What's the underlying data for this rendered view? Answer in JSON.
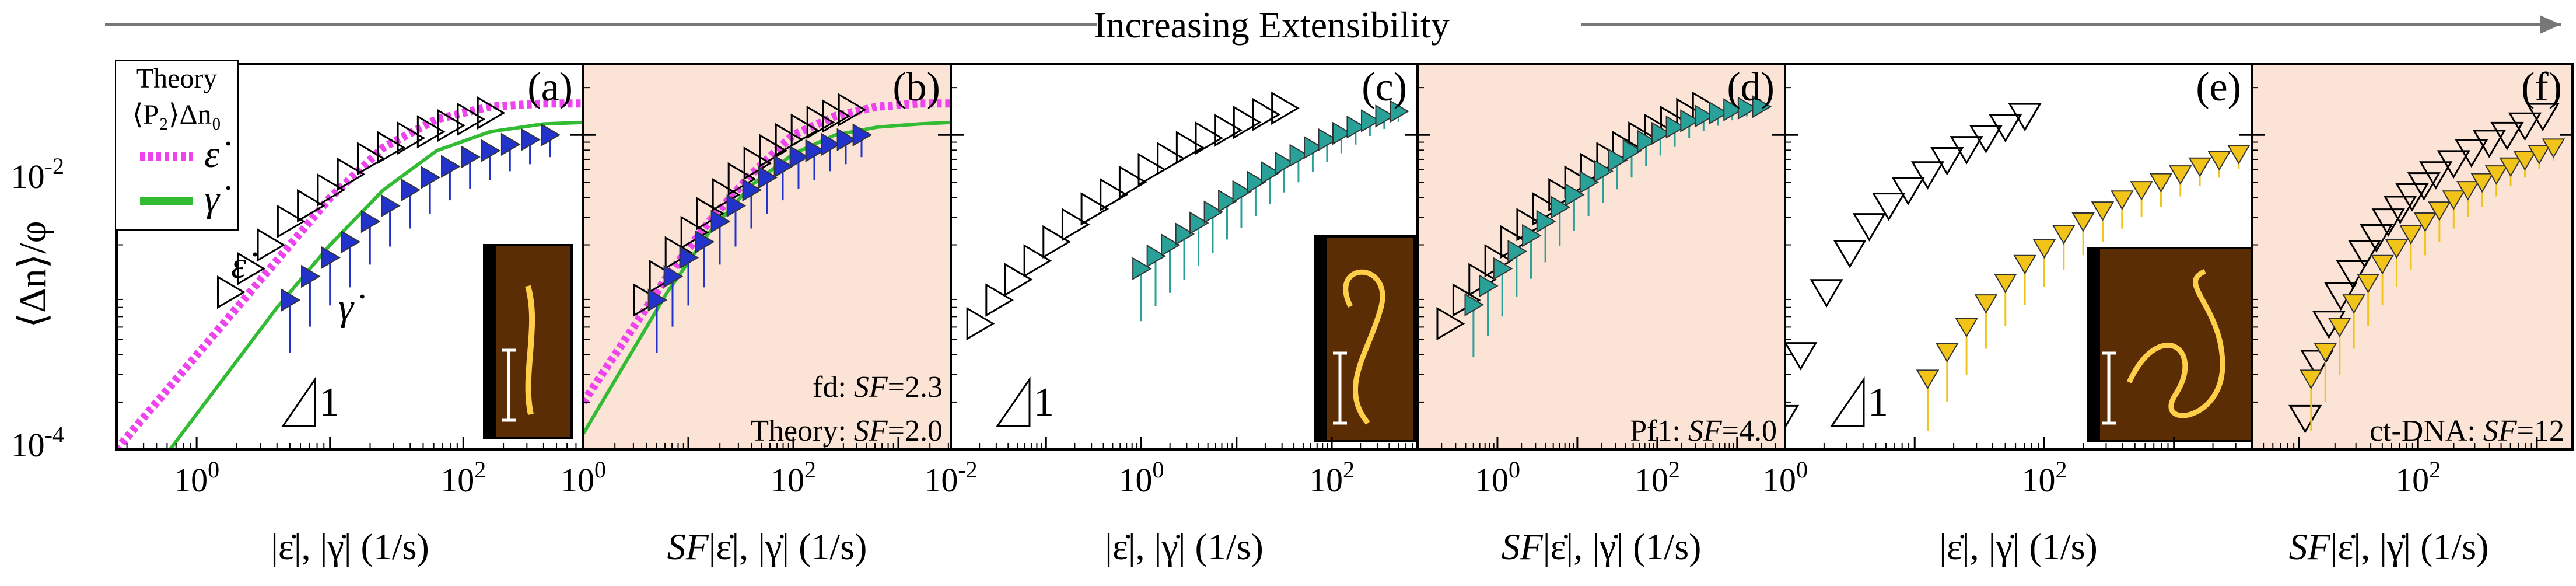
{
  "header": {
    "title": "Increasing Extensibility"
  },
  "y_axis": {
    "label": "⟨Δn⟩/φ",
    "ticks": [
      {
        "value": -2,
        "label": "10-2",
        "base": "10",
        "exp": "-2"
      },
      {
        "value": -4,
        "label": "10-4",
        "base": "10",
        "exp": "-4"
      }
    ]
  },
  "legend": {
    "title": "Theory",
    "subtitle": "⟨P₂⟩Δn₀",
    "items": [
      {
        "label": "ε̇",
        "color": "#ee44ee",
        "style": "dotted"
      },
      {
        "label": "γ̇",
        "color": "#33bb33",
        "style": "solid"
      }
    ]
  },
  "colors": {
    "background_sf": "#fbe3d6",
    "blue": "#2233cc",
    "teal": "#2aa198",
    "gold": "#f2c41a",
    "magenta": "#ee44ee",
    "green": "#33bb33"
  },
  "chart_data": [
    {
      "panel": "(a)",
      "type": "scatter",
      "shaded": false,
      "xlabel": "|ε̇|, |γ̇| (1/s)",
      "xlog": [
        -0.6,
        2.9
      ],
      "ylim_log": [
        -4,
        -1.55
      ],
      "xticks": [
        {
          "value": 0,
          "base": "10",
          "exp": "0"
        },
        {
          "value": 2,
          "base": "10",
          "exp": "2"
        }
      ],
      "annotations": [
        "ε̇",
        "γ̇"
      ],
      "slope_label": "1",
      "inset": "fd",
      "series": [
        {
          "name": "ε̇ data",
          "marker": "triangle-right-open",
          "color": "#000000",
          "x_log": [
            0.25,
            0.4,
            0.55,
            0.7,
            0.85,
            1.0,
            1.15,
            1.3,
            1.45,
            1.6,
            1.75,
            1.9,
            2.05,
            2.2
          ],
          "y_log": [
            -3.0,
            -2.85,
            -2.7,
            -2.55,
            -2.45,
            -2.35,
            -2.25,
            -2.15,
            -2.08,
            -2.02,
            -1.98,
            -1.94,
            -1.9,
            -1.86
          ]
        },
        {
          "name": "γ̇ data",
          "marker": "triangle-right-filled",
          "color": "#2233cc",
          "x_log": [
            0.7,
            0.85,
            1.0,
            1.15,
            1.3,
            1.45,
            1.6,
            1.75,
            1.9,
            2.05,
            2.2,
            2.35,
            2.5,
            2.65
          ],
          "y_log": [
            -3.05,
            -2.9,
            -2.78,
            -2.68,
            -2.55,
            -2.45,
            -2.35,
            -2.27,
            -2.2,
            -2.14,
            -2.1,
            -2.06,
            -2.03,
            -2.0
          ]
        },
        {
          "name": "theory ε̇",
          "line": "dotted",
          "color": "#ee44ee",
          "x_log": [
            -0.6,
            -0.2,
            0.2,
            0.6,
            1.0,
            1.4,
            1.8,
            2.2,
            2.6,
            2.9
          ],
          "y_log": [
            -4.0,
            -3.6,
            -3.2,
            -2.8,
            -2.4,
            -2.08,
            -1.9,
            -1.82,
            -1.8,
            -1.8
          ]
        },
        {
          "name": "theory γ̇",
          "line": "solid",
          "color": "#33bb33",
          "x_log": [
            -0.2,
            0.2,
            0.6,
            1.0,
            1.4,
            1.8,
            2.2,
            2.6,
            2.9
          ],
          "y_log": [
            -4.0,
            -3.55,
            -3.1,
            -2.7,
            -2.35,
            -2.1,
            -1.98,
            -1.93,
            -1.92
          ]
        }
      ]
    },
    {
      "panel": "(b)",
      "type": "scatter",
      "shaded": true,
      "xlabel": "SF|ε̇|, |γ̇| (1/s)",
      "xlog": [
        0,
        3.5
      ],
      "ylim_log": [
        -4,
        -1.55
      ],
      "xticks": [
        {
          "value": 0,
          "base": "10",
          "exp": "0"
        },
        {
          "value": 2,
          "base": "10",
          "exp": "2"
        }
      ],
      "annotations": [
        "fd: SF=2.3",
        "Theory: SF=2.0"
      ],
      "annotation_parts": [
        {
          "prefix": "fd: ",
          "sf": "SF",
          "value": "=2.3"
        },
        {
          "prefix": "Theory: ",
          "sf": "SF",
          "value": "=2.0"
        }
      ],
      "series": [
        {
          "name": "ε̇ data",
          "marker": "triangle-right-open",
          "color": "#000000",
          "x_log": [
            0.6,
            0.75,
            0.9,
            1.05,
            1.2,
            1.35,
            1.5,
            1.65,
            1.8,
            1.95,
            2.1,
            2.25,
            2.4,
            2.55
          ],
          "y_log": [
            -3.05,
            -2.9,
            -2.75,
            -2.62,
            -2.5,
            -2.38,
            -2.28,
            -2.18,
            -2.1,
            -2.03,
            -1.97,
            -1.92,
            -1.88,
            -1.84
          ]
        },
        {
          "name": "γ̇ data",
          "marker": "triangle-right-filled",
          "color": "#2233cc",
          "x_log": [
            0.7,
            0.85,
            1.0,
            1.15,
            1.3,
            1.45,
            1.6,
            1.75,
            1.9,
            2.05,
            2.2,
            2.35,
            2.5,
            2.65
          ],
          "y_log": [
            -3.05,
            -2.9,
            -2.78,
            -2.68,
            -2.55,
            -2.45,
            -2.35,
            -2.27,
            -2.2,
            -2.14,
            -2.1,
            -2.06,
            -2.03,
            -2.0
          ]
        },
        {
          "name": "theory ε̇",
          "line": "dotted",
          "color": "#ee44ee",
          "x_log": [
            0.0,
            0.4,
            0.8,
            1.2,
            1.6,
            2.0,
            2.4,
            2.8,
            3.2,
            3.5
          ],
          "y_log": [
            -3.7,
            -3.3,
            -2.9,
            -2.55,
            -2.25,
            -2.0,
            -1.88,
            -1.82,
            -1.8,
            -1.8
          ]
        },
        {
          "name": "theory γ̇",
          "line": "solid",
          "color": "#33bb33",
          "x_log": [
            0.0,
            0.4,
            0.8,
            1.2,
            1.6,
            2.0,
            2.4,
            2.8,
            3.2,
            3.5
          ],
          "y_log": [
            -3.9,
            -3.45,
            -3.0,
            -2.62,
            -2.32,
            -2.12,
            -2.0,
            -1.95,
            -1.93,
            -1.92
          ]
        }
      ]
    },
    {
      "panel": "(c)",
      "type": "scatter",
      "shaded": false,
      "xlabel": "|ε̇|, |γ̇| (1/s)",
      "xlog": [
        -2,
        2.9
      ],
      "ylim_log": [
        -4,
        -1.55
      ],
      "xticks": [
        {
          "value": -2,
          "base": "10",
          "exp": "-2"
        },
        {
          "value": 0,
          "base": "10",
          "exp": "0"
        },
        {
          "value": 2,
          "base": "10",
          "exp": "2"
        }
      ],
      "slope_label": "1",
      "inset": "Pf1",
      "series": [
        {
          "name": "ε̇ data",
          "marker": "triangle-right-open",
          "color": "#000000",
          "x_log": [
            -1.7,
            -1.5,
            -1.3,
            -1.1,
            -0.9,
            -0.7,
            -0.5,
            -0.3,
            -0.1,
            0.1,
            0.3,
            0.5,
            0.7,
            0.9,
            1.1,
            1.3,
            1.5
          ],
          "y_log": [
            -3.2,
            -3.05,
            -2.92,
            -2.8,
            -2.68,
            -2.57,
            -2.47,
            -2.38,
            -2.3,
            -2.22,
            -2.15,
            -2.08,
            -2.02,
            -1.97,
            -1.92,
            -1.87,
            -1.83
          ]
        },
        {
          "name": "γ̇ data",
          "marker": "triangle-right-filled",
          "color": "#2aa198",
          "x_log": [
            0.0,
            0.15,
            0.3,
            0.45,
            0.6,
            0.75,
            0.9,
            1.05,
            1.2,
            1.35,
            1.5,
            1.65,
            1.8,
            1.95,
            2.1,
            2.25,
            2.4,
            2.55,
            2.7
          ],
          "y_log": [
            -2.85,
            -2.77,
            -2.7,
            -2.63,
            -2.56,
            -2.49,
            -2.42,
            -2.36,
            -2.3,
            -2.24,
            -2.18,
            -2.13,
            -2.08,
            -2.03,
            -1.99,
            -1.95,
            -1.91,
            -1.88,
            -1.85
          ]
        }
      ]
    },
    {
      "panel": "(d)",
      "type": "scatter",
      "shaded": true,
      "xlabel": "SF|ε̇|, |γ̇| (1/s)",
      "xlog": [
        -1,
        3.6
      ],
      "ylim_log": [
        -4,
        -1.55
      ],
      "xticks": [
        {
          "value": 0,
          "base": "10",
          "exp": "0"
        },
        {
          "value": 2,
          "base": "10",
          "exp": "2"
        }
      ],
      "annotations": [
        "Pf1: SF=4.0"
      ],
      "annotation_parts": [
        {
          "prefix": "Pf1: ",
          "sf": "SF",
          "value": "=4.0"
        }
      ],
      "series": [
        {
          "name": "ε̇ data",
          "marker": "triangle-right-open",
          "color": "#000000",
          "x_log": [
            -0.6,
            -0.4,
            -0.2,
            0.0,
            0.2,
            0.4,
            0.6,
            0.8,
            1.0,
            1.2,
            1.4,
            1.6,
            1.8,
            2.0,
            2.2,
            2.4,
            2.6
          ],
          "y_log": [
            -3.2,
            -3.05,
            -2.92,
            -2.8,
            -2.68,
            -2.57,
            -2.47,
            -2.38,
            -2.3,
            -2.22,
            -2.15,
            -2.08,
            -2.02,
            -1.97,
            -1.92,
            -1.87,
            -1.83
          ]
        },
        {
          "name": "γ̇ data",
          "marker": "triangle-right-filled",
          "color": "#2aa198",
          "x_log": [
            -0.3,
            -0.12,
            0.06,
            0.24,
            0.42,
            0.6,
            0.78,
            0.96,
            1.14,
            1.32,
            1.5,
            1.68,
            1.86,
            2.04,
            2.22,
            2.4,
            2.58,
            2.76,
            2.94,
            3.12,
            3.3
          ],
          "y_log": [
            -3.08,
            -2.96,
            -2.85,
            -2.74,
            -2.64,
            -2.55,
            -2.46,
            -2.38,
            -2.3,
            -2.23,
            -2.16,
            -2.1,
            -2.04,
            -1.99,
            -1.95,
            -1.91,
            -1.88,
            -1.86,
            -1.84,
            -1.83,
            -1.82
          ]
        }
      ]
    },
    {
      "panel": "(e)",
      "type": "scatter",
      "shaded": false,
      "xlabel": "|ε̇|, |γ̇| (1/s)",
      "xlog": [
        0,
        3.6
      ],
      "ylim_log": [
        -4,
        -1.55
      ],
      "xticks": [
        {
          "value": 0,
          "base": "10",
          "exp": "0"
        },
        {
          "value": 2,
          "base": "10",
          "exp": "2"
        }
      ],
      "slope_label": "1",
      "inset": "ct-DNA",
      "series": [
        {
          "name": "ε̇ data",
          "marker": "triangle-down-open",
          "color": "#000000",
          "x_log": [
            -0.02,
            0.12,
            0.32,
            0.5,
            0.65,
            0.8,
            0.95,
            1.1,
            1.25,
            1.4,
            1.55,
            1.7,
            1.85
          ],
          "y_log": [
            -3.8,
            -3.4,
            -3.0,
            -2.75,
            -2.58,
            -2.45,
            -2.35,
            -2.25,
            -2.16,
            -2.09,
            -2.02,
            -1.95,
            -1.88
          ]
        },
        {
          "name": "γ̇ data",
          "marker": "triangle-down-filled",
          "color": "#f2c41a",
          "x_log": [
            1.1,
            1.25,
            1.4,
            1.55,
            1.7,
            1.85,
            2.0,
            2.15,
            2.3,
            2.45,
            2.6,
            2.75,
            2.9,
            3.05,
            3.2,
            3.35,
            3.5
          ],
          "y_log": [
            -3.55,
            -3.38,
            -3.22,
            -3.07,
            -2.94,
            -2.82,
            -2.72,
            -2.63,
            -2.55,
            -2.48,
            -2.41,
            -2.35,
            -2.3,
            -2.25,
            -2.2,
            -2.16,
            -2.12
          ]
        }
      ]
    },
    {
      "panel": "(f)",
      "type": "scatter",
      "shaded": true,
      "xlabel": "SF|ε̇|, |γ̇| (1/s)",
      "xlog": [
        0.6,
        3.3
      ],
      "ylim_log": [
        -4,
        -1.55
      ],
      "xticks": [
        {
          "value": 2,
          "base": "10",
          "exp": "2"
        }
      ],
      "annotations": [
        "ct-DNA: SF=12"
      ],
      "annotation_parts": [
        {
          "prefix": "ct-DNA: ",
          "sf": "SF",
          "value": "=12"
        }
      ],
      "series": [
        {
          "name": "ε̇ data",
          "marker": "triangle-down-open",
          "color": "#000000",
          "x_log": [
            1.05,
            1.15,
            1.25,
            1.35,
            1.45,
            1.55,
            1.65,
            1.75,
            1.85,
            1.95,
            2.05,
            2.15,
            2.3,
            2.45,
            2.6,
            2.75,
            2.9,
            3.05
          ],
          "y_log": [
            -3.8,
            -3.45,
            -3.2,
            -3.02,
            -2.88,
            -2.75,
            -2.65,
            -2.55,
            -2.47,
            -2.39,
            -2.32,
            -2.25,
            -2.18,
            -2.11,
            -2.05,
            -2.0,
            -1.94,
            -1.88
          ]
        },
        {
          "name": "γ̇ data",
          "marker": "triangle-down-filled",
          "color": "#f2c41a",
          "x_log": [
            1.1,
            1.22,
            1.34,
            1.46,
            1.58,
            1.7,
            1.82,
            1.94,
            2.06,
            2.18,
            2.3,
            2.42,
            2.54,
            2.66,
            2.78,
            2.9,
            3.02,
            3.14
          ],
          "y_log": [
            -3.55,
            -3.38,
            -3.22,
            -3.07,
            -2.94,
            -2.82,
            -2.72,
            -2.63,
            -2.55,
            -2.48,
            -2.41,
            -2.35,
            -2.3,
            -2.25,
            -2.2,
            -2.16,
            -2.12,
            -2.08
          ]
        }
      ]
    }
  ]
}
